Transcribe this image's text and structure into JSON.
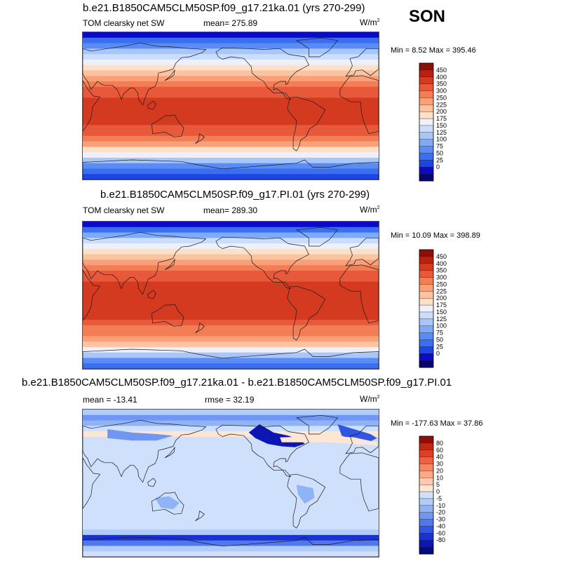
{
  "season": "SON",
  "units": "W/m",
  "units_sup": "2",
  "colors": {
    "abs_scale": [
      "#08066e",
      "#0a0ac8",
      "#1e46e6",
      "#3c6ef0",
      "#5a8cf5",
      "#7eaaf8",
      "#a8c6fa",
      "#ccdcfc",
      "#eef0fa",
      "#fde0c8",
      "#fcc3a0",
      "#f9a078",
      "#f37d55",
      "#e8583a",
      "#d43a20",
      "#b82010",
      "#8c0e08"
    ],
    "diff_scale": [
      "#060a80",
      "#0c16b4",
      "#1a32d4",
      "#3256e4",
      "#5078ec",
      "#7096f2",
      "#90b2f6",
      "#b0ccfa",
      "#cfe0fc",
      "#fde6d4",
      "#fccab0",
      "#faa888",
      "#f58664",
      "#ec6242",
      "#dc4026",
      "#c42814",
      "#8e0e0a"
    ]
  },
  "panels": [
    {
      "title": "b.e21.B1850CAM5CLM50SP.f09_g17.21ka.01 (yrs 270-299)",
      "left_label": "TOM clearsky net SW",
      "stat_label": "mean= 275.89",
      "minmax": "Min =   8.52 Max = 395.46",
      "levels": [
        "450",
        "400",
        "350",
        "300",
        "250",
        "225",
        "200",
        "175",
        "150",
        "125",
        "100",
        "75",
        "50",
        "25",
        "0"
      ],
      "profile": [
        1,
        3,
        4,
        6,
        7,
        8,
        9,
        10,
        11,
        12,
        13,
        13,
        14,
        14,
        14,
        14,
        14,
        13,
        13,
        12,
        11,
        9,
        8,
        6,
        4,
        3,
        2
      ]
    },
    {
      "title": "b.e21.B1850CAM5CLM50SP.f09_g17.PI.01 (yrs 270-299)",
      "left_label": "TOM clearsky net SW",
      "stat_label": "mean= 289.30",
      "minmax": "Min =  10.09 Max = 398.89",
      "levels": [
        "450",
        "400",
        "350",
        "300",
        "250",
        "225",
        "200",
        "175",
        "150",
        "125",
        "100",
        "75",
        "50",
        "25",
        "0"
      ],
      "profile": [
        1,
        3,
        5,
        7,
        8,
        9,
        10,
        11,
        12,
        13,
        13,
        14,
        14,
        14,
        14,
        14,
        14,
        14,
        13,
        12,
        12,
        11,
        10,
        8,
        6,
        4,
        3
      ]
    },
    {
      "title": "b.e21.B1850CAM5CLM50SP.f09_g17.21ka.01 - b.e21.B1850CAM5CLM50SP.f09_g17.PI.01",
      "left_label": "mean = -13.41",
      "stat_label": "rmse =  32.19",
      "minmax": "Min = -177.63 Max =  37.86",
      "levels": [
        "80",
        "60",
        "40",
        "30",
        "20",
        "10",
        "5",
        "0",
        "-5",
        "-10",
        "-20",
        "-30",
        "-40",
        "-60",
        "-80"
      ],
      "profile": [
        7,
        5,
        6,
        8,
        9,
        8,
        8,
        8,
        8,
        8,
        8,
        8,
        8,
        8,
        8,
        8,
        8,
        8,
        8,
        8,
        8,
        8,
        7,
        2,
        4,
        7,
        8
      ]
    }
  ]
}
